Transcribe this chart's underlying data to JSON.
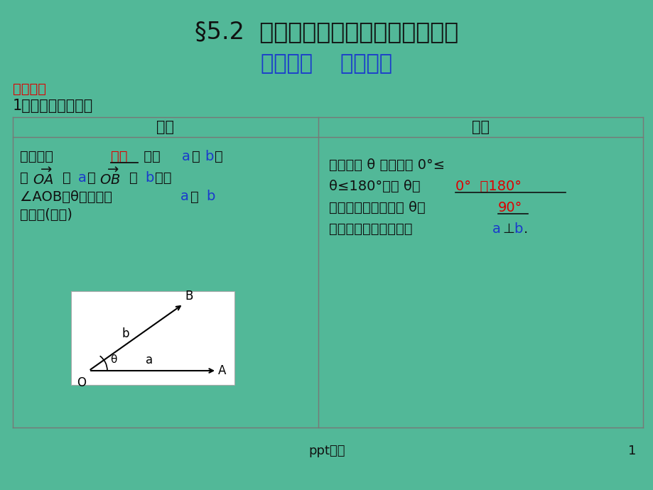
{
  "title": "§5.2  平面向量的基本定理及坐标表示",
  "subtitle": "基础知识    自主学习",
  "section_label": "要点桷理",
  "item_title": "1．两个向量的夹角",
  "col1_header": "定义",
  "col2_header": "范围",
  "bg_color": "#52b898",
  "table_line_color": "#777777",
  "title_color": "#111111",
  "subtitle_color": "#1a3acc",
  "red_color": "#dd0000",
  "blue_color": "#1a3acc",
  "black_color": "#111111",
  "footer_text": "ppt精选",
  "page_num": "1"
}
